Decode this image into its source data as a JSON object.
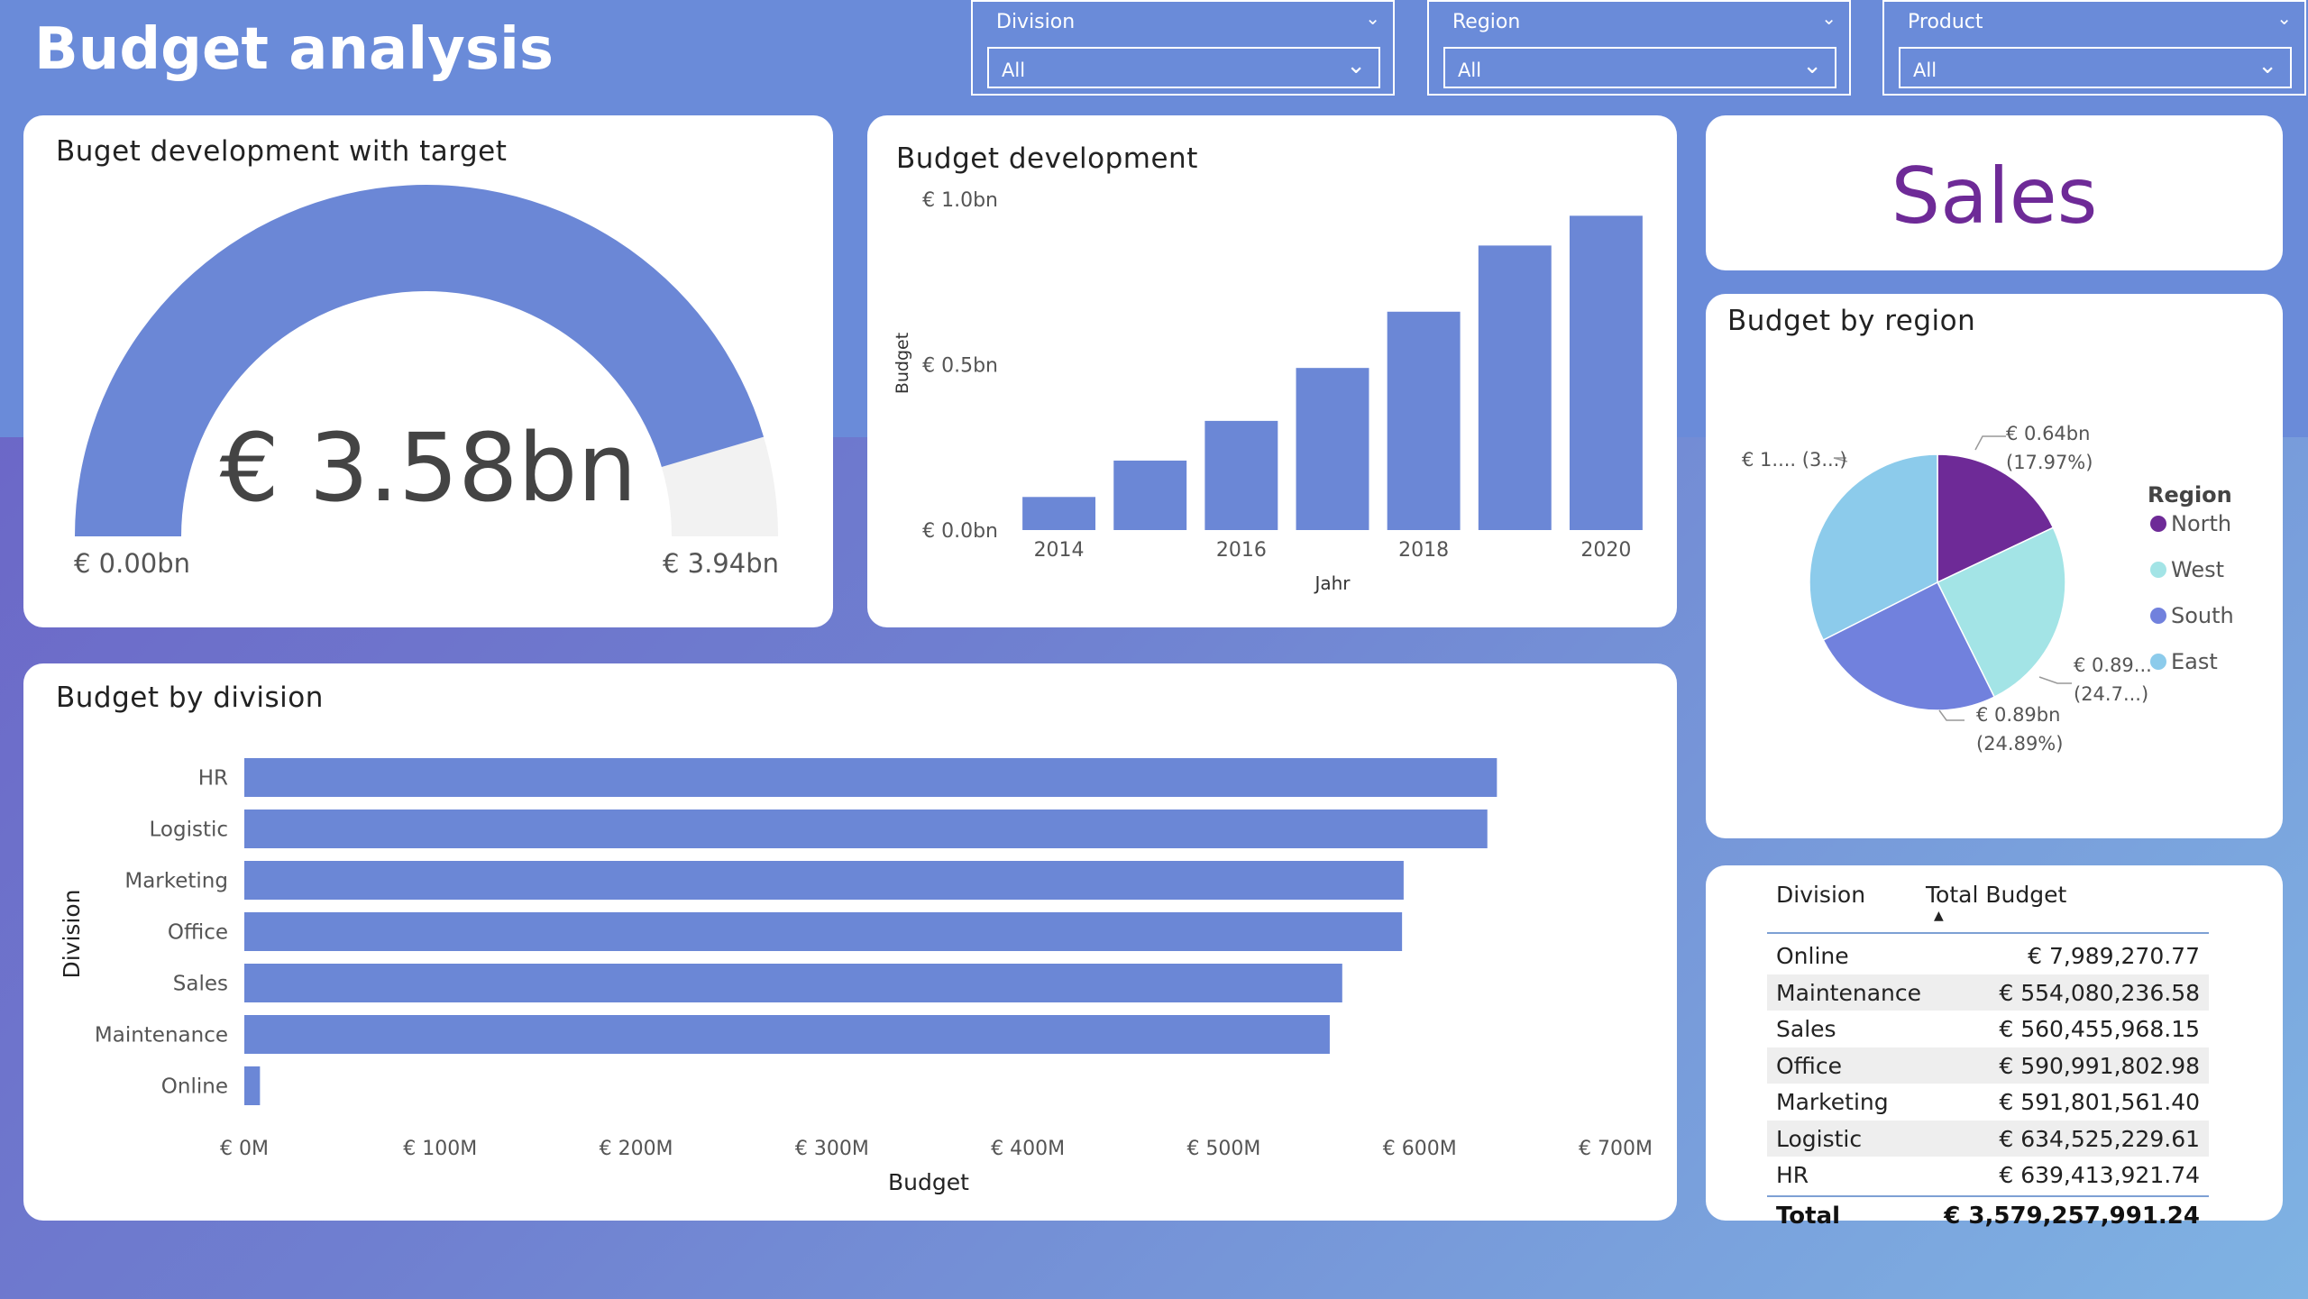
{
  "page": {
    "title": "Budget analysis"
  },
  "filters": [
    {
      "label": "Division",
      "value": "All"
    },
    {
      "label": "Region",
      "value": "All"
    },
    {
      "label": "Product",
      "value": "All"
    }
  ],
  "gauge": {
    "title": "Buget development with target",
    "value_label": "€ 3.58bn",
    "min_label": "€ 0.00bn",
    "max_label": "€ 3.94bn",
    "value": 3.58,
    "max": 3.94,
    "color": "#6b87d6",
    "track_color": "#f2f2f2"
  },
  "budget_development": {
    "title": "Budget development",
    "bar_color": "#6b87d6"
  },
  "sales_card": {
    "text": "Sales",
    "color": "#6e2a97"
  },
  "budget_by_region": {
    "title": "Budget by region",
    "legend_title": "Region",
    "legend": [
      {
        "name": "North",
        "color": "#6e2a97"
      },
      {
        "name": "West",
        "color": "#a3e4e6"
      },
      {
        "name": "South",
        "color": "#7181dd"
      },
      {
        "name": "East",
        "color": "#8ccbeb"
      }
    ],
    "labels": {
      "north": [
        "€ 0.64bn",
        "(17.97%)"
      ],
      "west": [
        "€ 0.89...",
        "(24.7...)"
      ],
      "south": [
        "€ 0.89bn",
        "(24.89%)"
      ],
      "east": [
        "€ 1.... (3...)"
      ]
    }
  },
  "budget_by_division": {
    "title": "Budget by division",
    "bar_color": "#6b87d6"
  },
  "division_table": {
    "headers": [
      "Division",
      "Total Budget"
    ],
    "rows": [
      [
        "Online",
        "€ 7,989,270.77"
      ],
      [
        "Maintenance",
        "€ 554,080,236.58"
      ],
      [
        "Sales",
        "€ 560,455,968.15"
      ],
      [
        "Office",
        "€ 590,991,802.98"
      ],
      [
        "Marketing",
        "€ 591,801,561.40"
      ],
      [
        "Logistic",
        "€ 634,525,229.61"
      ],
      [
        "HR",
        "€ 639,413,921.74"
      ]
    ],
    "total": [
      "Total",
      "€ 3,579,257,991.24"
    ]
  },
  "chart_data": [
    {
      "type": "bar",
      "title": "Budget development",
      "xlabel": "Jahr",
      "ylabel": "Budget",
      "categories": [
        "2014",
        "2015",
        "2016",
        "2017",
        "2018",
        "2019",
        "2020"
      ],
      "x_tick_labels": [
        "2014",
        "2016",
        "2018",
        "2020"
      ],
      "values": [
        0.1,
        0.21,
        0.33,
        0.49,
        0.66,
        0.86,
        0.95
      ],
      "unit": "€ bn",
      "ylim": [
        0,
        1.0
      ],
      "y_tick_labels": [
        "€ 0.0bn",
        "€ 0.5bn",
        "€ 1.0bn"
      ]
    },
    {
      "type": "bar",
      "orientation": "horizontal",
      "title": "Budget by division",
      "xlabel": "Budget",
      "ylabel": "Division",
      "categories": [
        "HR",
        "Logistic",
        "Marketing",
        "Office",
        "Sales",
        "Maintenance",
        "Online"
      ],
      "values": [
        639.41,
        634.53,
        591.8,
        590.99,
        560.46,
        554.08,
        7.99
      ],
      "unit": "€ M",
      "xlim": [
        0,
        700
      ],
      "x_tick_labels": [
        "€ 0M",
        "€ 100M",
        "€ 200M",
        "€ 300M",
        "€ 400M",
        "€ 500M",
        "€ 600M",
        "€ 700M"
      ]
    },
    {
      "type": "pie",
      "title": "Budget by region",
      "series": [
        {
          "name": "North",
          "value": 17.97
        },
        {
          "name": "West",
          "value": 24.7
        },
        {
          "name": "South",
          "value": 24.89
        },
        {
          "name": "East",
          "value": 32.44
        }
      ],
      "unit": "%"
    },
    {
      "type": "gauge",
      "title": "Buget development with target",
      "value": 3.58,
      "min": 0,
      "max": 3.94,
      "unit": "€ bn"
    }
  ]
}
